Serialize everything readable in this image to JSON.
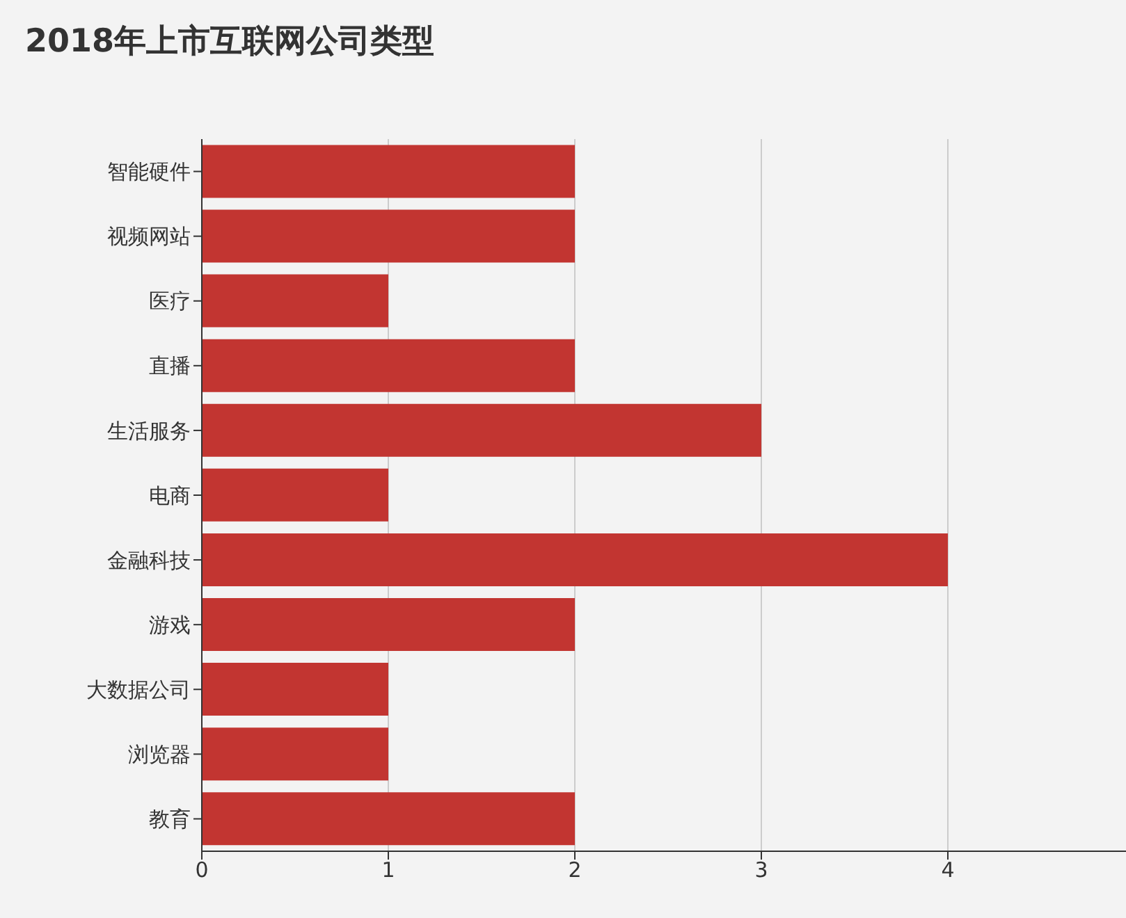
{
  "chart_data": {
    "type": "bar",
    "orientation": "horizontal",
    "title": "2018年上市互联网公司类型",
    "categories": [
      "智能硬件",
      "视频网站",
      "医疗",
      "直播",
      "生活服务",
      "电商",
      "金融科技",
      "游戏",
      "大数据公司",
      "浏览器",
      "教育"
    ],
    "values": [
      2,
      2,
      1,
      2,
      3,
      1,
      4,
      2,
      1,
      1,
      2
    ],
    "color": "#c23531",
    "xlim": [
      0,
      5
    ],
    "xticks": [
      0,
      1,
      2,
      3,
      4
    ],
    "grid": "x"
  }
}
